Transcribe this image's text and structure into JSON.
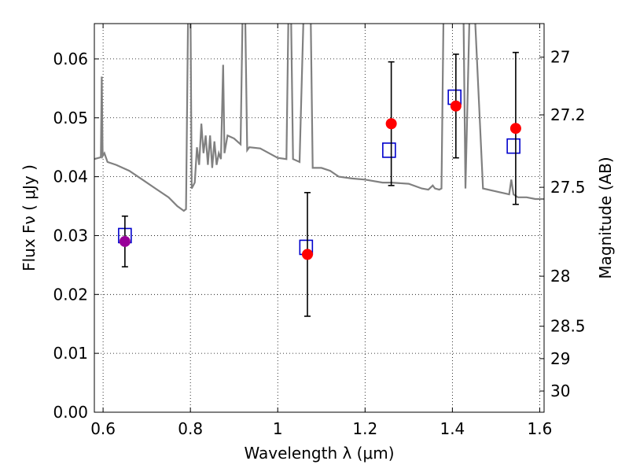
{
  "chart_data": {
    "type": "scatter",
    "xlabel": "Wavelength  λ (μm)",
    "ylabel": "Flux  Fν  ( μJy )",
    "ylabel_right": "Magnitude (AB)",
    "xlim": [
      0.58,
      1.61
    ],
    "ylim": [
      0.0,
      0.066
    ],
    "grid": true,
    "x_ticks": [
      0.6,
      0.8,
      1.0,
      1.2,
      1.4,
      1.6
    ],
    "x_tick_labels": [
      "0.6",
      "0.8",
      "1",
      "1.2",
      "1.4",
      "1.6"
    ],
    "y_ticks": [
      0.0,
      0.01,
      0.02,
      0.03,
      0.04,
      0.05,
      0.06
    ],
    "y_tick_labels": [
      "0.00",
      "0.01",
      "0.02",
      "0.03",
      "0.04",
      "0.05",
      "0.06"
    ],
    "mag_ticks": [
      {
        "label": "27",
        "flux": 0.0603
      },
      {
        "label": "27.2",
        "flux": 0.0505
      },
      {
        "label": "27.5",
        "flux": 0.0382
      },
      {
        "label": "28",
        "flux": 0.0231
      },
      {
        "label": "28.5",
        "flux": 0.0146
      },
      {
        "label": "29",
        "flux": 0.0091
      },
      {
        "label": "30",
        "flux": 0.0036
      }
    ],
    "series": [
      {
        "kind": "model",
        "color": "#808080",
        "points": [
          [
            0.58,
            0.043
          ],
          [
            0.595,
            0.0433
          ],
          [
            0.597,
            0.057
          ],
          [
            0.599,
            0.0435
          ],
          [
            0.603,
            0.044
          ],
          [
            0.61,
            0.0425
          ],
          [
            0.63,
            0.042
          ],
          [
            0.66,
            0.041
          ],
          [
            0.69,
            0.0395
          ],
          [
            0.72,
            0.038
          ],
          [
            0.75,
            0.0365
          ],
          [
            0.77,
            0.035
          ],
          [
            0.785,
            0.0342
          ],
          [
            0.79,
            0.0345
          ],
          [
            0.795,
            0.07
          ],
          [
            0.8,
            0.07
          ],
          [
            0.803,
            0.038
          ],
          [
            0.81,
            0.039
          ],
          [
            0.815,
            0.045
          ],
          [
            0.82,
            0.042
          ],
          [
            0.825,
            0.049
          ],
          [
            0.83,
            0.044
          ],
          [
            0.835,
            0.047
          ],
          [
            0.84,
            0.042
          ],
          [
            0.845,
            0.047
          ],
          [
            0.85,
            0.0415
          ],
          [
            0.855,
            0.046
          ],
          [
            0.86,
            0.042
          ],
          [
            0.865,
            0.044
          ],
          [
            0.87,
            0.043
          ],
          [
            0.875,
            0.059
          ],
          [
            0.878,
            0.044
          ],
          [
            0.885,
            0.047
          ],
          [
            0.9,
            0.0465
          ],
          [
            0.915,
            0.0455
          ],
          [
            0.92,
            0.07
          ],
          [
            0.925,
            0.07
          ],
          [
            0.93,
            0.0445
          ],
          [
            0.935,
            0.045
          ],
          [
            0.96,
            0.0448
          ],
          [
            0.98,
            0.044
          ],
          [
            1.0,
            0.0432
          ],
          [
            1.02,
            0.043
          ],
          [
            1.025,
            0.07
          ],
          [
            1.03,
            0.07
          ],
          [
            1.035,
            0.043
          ],
          [
            1.05,
            0.0425
          ],
          [
            1.06,
            0.07
          ],
          [
            1.075,
            0.07
          ],
          [
            1.08,
            0.0415
          ],
          [
            1.1,
            0.0415
          ],
          [
            1.12,
            0.041
          ],
          [
            1.14,
            0.04
          ],
          [
            1.17,
            0.0397
          ],
          [
            1.2,
            0.0395
          ],
          [
            1.24,
            0.039
          ],
          [
            1.26,
            0.039
          ],
          [
            1.3,
            0.0388
          ],
          [
            1.33,
            0.038
          ],
          [
            1.345,
            0.0378
          ],
          [
            1.355,
            0.0385
          ],
          [
            1.36,
            0.038
          ],
          [
            1.37,
            0.0378
          ],
          [
            1.375,
            0.038
          ],
          [
            1.38,
            0.07
          ],
          [
            1.4,
            0.07
          ],
          [
            1.42,
            0.07
          ],
          [
            1.425,
            0.07
          ],
          [
            1.43,
            0.038
          ],
          [
            1.44,
            0.07
          ],
          [
            1.45,
            0.07
          ],
          [
            1.47,
            0.038
          ],
          [
            1.5,
            0.0375
          ],
          [
            1.53,
            0.037
          ],
          [
            1.535,
            0.0395
          ],
          [
            1.54,
            0.037
          ],
          [
            1.55,
            0.0365
          ],
          [
            1.57,
            0.0365
          ],
          [
            1.59,
            0.0362
          ],
          [
            1.61,
            0.0362
          ]
        ]
      },
      {
        "kind": "model-photometry",
        "marker": "open-square",
        "color": "#0000cc",
        "x": [
          0.65,
          1.065,
          1.255,
          1.405,
          1.54
        ],
        "y": [
          0.03,
          0.028,
          0.0445,
          0.0535,
          0.0452
        ]
      },
      {
        "kind": "observed",
        "marker": "filled-circle",
        "color": "#ff0000",
        "x": [
          0.65,
          1.068,
          1.26,
          1.408,
          1.545
        ],
        "y": [
          0.029,
          0.0268,
          0.049,
          0.052,
          0.0482
        ],
        "err": [
          0.0043,
          0.0105,
          0.0105,
          0.0088,
          0.0129
        ],
        "point_colors": [
          "#990099",
          "#ff0000",
          "#ff0000",
          "#ff0000",
          "#ff0000"
        ]
      }
    ]
  }
}
